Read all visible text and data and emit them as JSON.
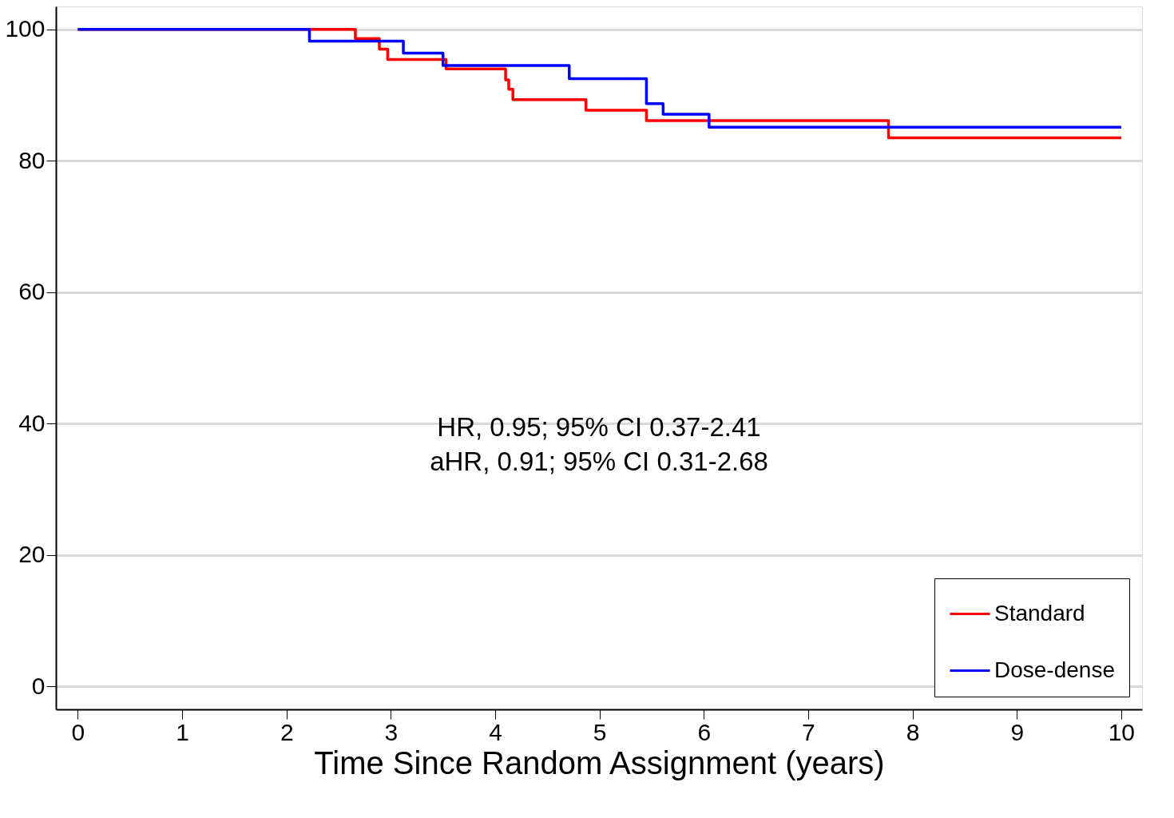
{
  "chart_data": {
    "type": "step",
    "xlabel": "Time Since Random Assignment (years)",
    "xlim": [
      -0.21,
      10.2
    ],
    "xticks": [
      0,
      1,
      2,
      3,
      4,
      5,
      6,
      7,
      8,
      9,
      10
    ],
    "ylim": [
      -3.5,
      103.5
    ],
    "yticks": [
      0,
      20,
      40,
      60,
      80,
      100
    ],
    "grid": "y",
    "legend": "bottom right",
    "line_style": "solid",
    "marker": "none",
    "annotations": [
      "HR, 0.95; 95% CI 0.37-2.41",
      "aHR, 0.91; 95% CI 0.31-2.68"
    ],
    "series": [
      {
        "name": "Standard",
        "color": "#ff0000",
        "x": [
          0,
          2.66,
          2.89,
          2.97,
          3.53,
          4.1,
          4.13,
          4.17,
          4.87,
          5.45,
          7.77,
          10
        ],
        "values": [
          100,
          98.6,
          97.0,
          95.4,
          94.0,
          92.3,
          90.9,
          89.3,
          87.7,
          86.1,
          83.5,
          83.5
        ]
      },
      {
        "name": "Dose-dense",
        "color": "#0000ff",
        "x": [
          0,
          2.22,
          3.12,
          3.5,
          4.71,
          5.45,
          5.61,
          6.05,
          10
        ],
        "values": [
          100,
          98.2,
          96.4,
          94.5,
          92.5,
          88.7,
          87.1,
          85.1,
          85.1
        ]
      }
    ]
  }
}
